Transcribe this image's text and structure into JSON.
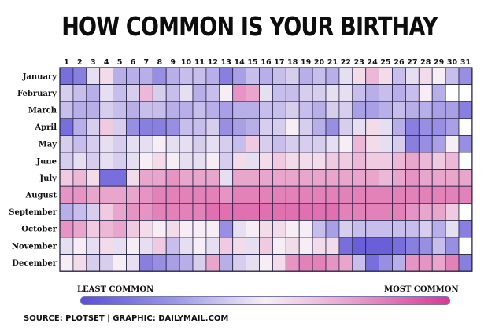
{
  "header": {
    "title": "HOW COMMON IS YOUR BIRTHAY"
  },
  "legend": {
    "least": "LEAST COMMON",
    "most": "MOST COMMON"
  },
  "footer": {
    "source": "SOURCE: PLOTSET | GRAPHIC: DAILYMAIL.COM"
  },
  "colors": {
    "least": "#5a4fd6",
    "neutral": "#f6eef4",
    "most": "#d63a92",
    "missing": "#ffffff"
  },
  "chart_data": {
    "type": "heatmap",
    "title": "HOW COMMON IS YOUR BIRTHAY",
    "x": [
      1,
      2,
      3,
      4,
      5,
      6,
      7,
      8,
      9,
      10,
      11,
      12,
      13,
      14,
      15,
      16,
      17,
      18,
      19,
      20,
      21,
      22,
      23,
      24,
      25,
      26,
      27,
      28,
      29,
      30,
      31
    ],
    "y": [
      "January",
      "February",
      "March",
      "April",
      "May",
      "June",
      "July",
      "August",
      "September",
      "October",
      "November",
      "December"
    ],
    "scale": {
      "min": 0,
      "max": 1,
      "min_label": "LEAST COMMON",
      "max_label": "MOST COMMON"
    },
    "values": [
      [
        0.1,
        0.15,
        0.45,
        0.55,
        0.3,
        0.3,
        0.3,
        0.2,
        0.3,
        0.35,
        0.35,
        0.3,
        0.15,
        0.25,
        0.35,
        0.3,
        0.35,
        0.4,
        0.3,
        0.35,
        0.3,
        0.45,
        0.55,
        0.65,
        0.55,
        0.35,
        0.45,
        0.55,
        0.5,
        0.35,
        0.2
      ],
      [
        0.4,
        0.35,
        0.3,
        0.45,
        0.35,
        0.4,
        0.65,
        0.4,
        0.35,
        0.45,
        0.3,
        0.35,
        0.5,
        0.75,
        0.7,
        0.45,
        0.35,
        0.35,
        0.4,
        0.4,
        0.45,
        0.45,
        0.35,
        0.3,
        0.35,
        0.3,
        0.35,
        0.5,
        0.3,
        null,
        null
      ],
      [
        0.35,
        0.3,
        0.3,
        0.4,
        0.35,
        0.3,
        0.35,
        0.35,
        0.3,
        0.3,
        0.35,
        0.3,
        0.25,
        0.3,
        0.3,
        0.35,
        0.35,
        0.4,
        0.35,
        0.3,
        0.4,
        0.4,
        0.25,
        0.25,
        0.3,
        0.35,
        0.3,
        0.3,
        0.25,
        0.25,
        0.15
      ],
      [
        0.1,
        0.3,
        0.4,
        0.6,
        0.4,
        0.2,
        0.15,
        0.15,
        0.2,
        0.35,
        0.35,
        0.4,
        0.2,
        0.25,
        0.3,
        0.4,
        0.4,
        0.5,
        0.4,
        0.3,
        0.2,
        0.4,
        0.45,
        0.55,
        0.45,
        0.3,
        0.15,
        0.2,
        0.2,
        0.25,
        null
      ],
      [
        0.4,
        0.35,
        0.4,
        0.45,
        0.4,
        0.45,
        0.45,
        0.5,
        0.45,
        0.45,
        0.4,
        0.45,
        0.4,
        0.35,
        0.6,
        0.4,
        0.35,
        0.4,
        0.4,
        0.4,
        0.45,
        0.5,
        0.65,
        0.55,
        0.45,
        0.4,
        0.15,
        0.2,
        0.25,
        0.5,
        0.2
      ],
      [
        0.4,
        0.45,
        0.4,
        0.45,
        0.4,
        0.45,
        0.5,
        0.55,
        0.5,
        0.45,
        0.45,
        0.5,
        0.4,
        0.55,
        0.45,
        0.55,
        0.6,
        0.55,
        0.55,
        0.55,
        0.6,
        0.6,
        0.65,
        0.6,
        0.6,
        0.65,
        0.7,
        0.65,
        0.6,
        0.65,
        null
      ],
      [
        0.6,
        0.65,
        0.55,
        0.1,
        0.1,
        0.55,
        0.7,
        0.7,
        0.75,
        0.7,
        0.7,
        0.7,
        0.45,
        0.7,
        0.7,
        0.7,
        0.7,
        0.7,
        0.7,
        0.7,
        0.7,
        0.7,
        0.7,
        0.7,
        0.65,
        0.7,
        0.75,
        0.7,
        0.7,
        0.7,
        0.7
      ],
      [
        0.75,
        0.75,
        0.7,
        0.7,
        0.7,
        0.7,
        0.75,
        0.8,
        0.8,
        0.8,
        0.8,
        0.8,
        0.75,
        0.8,
        0.8,
        0.8,
        0.8,
        0.8,
        0.8,
        0.8,
        0.8,
        0.8,
        0.8,
        0.8,
        0.8,
        0.8,
        0.8,
        0.8,
        0.8,
        0.8,
        0.8
      ],
      [
        0.3,
        0.35,
        0.4,
        0.6,
        0.7,
        0.75,
        0.75,
        0.8,
        0.8,
        0.8,
        0.8,
        0.85,
        0.85,
        0.85,
        0.85,
        0.85,
        0.85,
        0.85,
        0.85,
        0.85,
        0.85,
        0.8,
        0.8,
        0.8,
        0.8,
        0.8,
        0.75,
        0.7,
        0.7,
        0.6,
        null
      ],
      [
        0.75,
        0.7,
        0.6,
        0.65,
        0.7,
        0.6,
        0.55,
        0.5,
        0.55,
        0.5,
        0.5,
        0.5,
        0.2,
        0.45,
        0.5,
        0.55,
        0.55,
        0.5,
        0.5,
        0.35,
        0.25,
        0.4,
        0.35,
        0.35,
        0.35,
        0.35,
        0.35,
        0.4,
        0.3,
        0.45,
        0.15
      ],
      [
        0.45,
        0.5,
        0.45,
        0.55,
        0.45,
        0.5,
        0.45,
        0.6,
        0.35,
        0.45,
        0.5,
        0.45,
        0.6,
        0.55,
        0.45,
        0.6,
        0.5,
        0.55,
        0.5,
        0.55,
        0.55,
        0.1,
        0.05,
        0.05,
        0.05,
        0.1,
        0.15,
        0.2,
        0.35,
        0.2,
        null
      ],
      [
        0.5,
        0.55,
        0.4,
        0.4,
        0.5,
        0.45,
        0.15,
        0.2,
        0.25,
        0.3,
        0.4,
        0.7,
        0.3,
        0.4,
        0.45,
        0.5,
        0.55,
        0.75,
        0.8,
        0.8,
        0.75,
        0.7,
        0.35,
        0.1,
        0.2,
        0.3,
        0.75,
        0.75,
        0.7,
        0.8,
        0.15
      ]
    ]
  }
}
